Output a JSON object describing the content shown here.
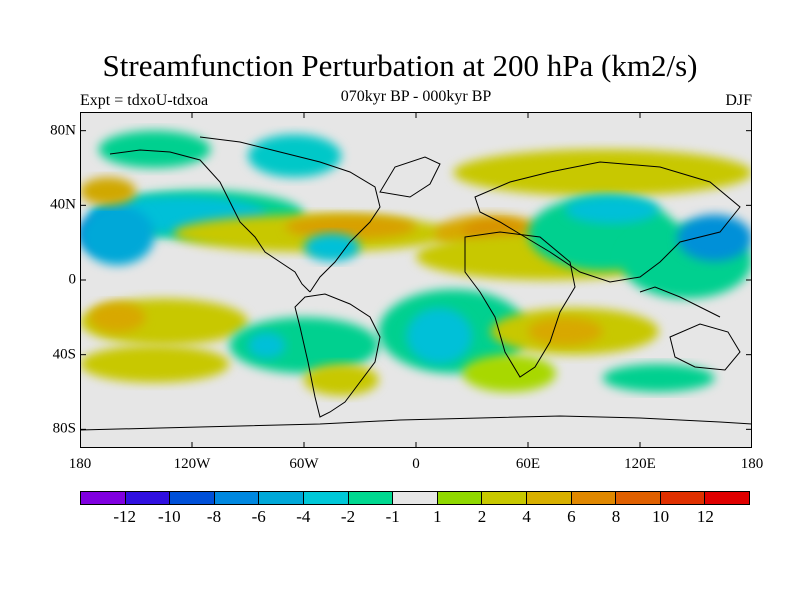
{
  "title": "Streamfunction Perturbation at 200 hPa (km2/s)",
  "subtitle_left": "Expt = tdxoU-tdxoa",
  "subtitle_center": "070kyr BP - 000kyr BP",
  "subtitle_right": "DJF",
  "map": {
    "projection": "cylindrical-equidistant",
    "lon_range": [
      -180,
      180
    ],
    "lat_range": [
      -90,
      90
    ],
    "y_ticks": [
      {
        "lat": 80,
        "label": "80N"
      },
      {
        "lat": 40,
        "label": "40N"
      },
      {
        "lat": 0,
        "label": "0"
      },
      {
        "lat": -40,
        "label": "40S"
      },
      {
        "lat": -80,
        "label": "80S"
      }
    ],
    "x_ticks": [
      {
        "lon": -180,
        "label": "180"
      },
      {
        "lon": -120,
        "label": "120W"
      },
      {
        "lon": -60,
        "label": "60W"
      },
      {
        "lon": 0,
        "label": "0"
      },
      {
        "lon": 60,
        "label": "60E"
      },
      {
        "lon": 120,
        "label": "120E"
      },
      {
        "lon": 180,
        "label": "180"
      }
    ],
    "neutral_color": "#e6e6e6",
    "fields": [
      {
        "level": -1,
        "lon": [
          -170,
          -60
        ],
        "lat": [
          22,
          48
        ],
        "color": "#00d08f"
      },
      {
        "level": -4,
        "lon": [
          -175,
          -80
        ],
        "lat": [
          25,
          45
        ],
        "color": "#00c0d8"
      },
      {
        "level": -8,
        "lon": [
          -180,
          -150
        ],
        "lat": [
          15,
          35
        ],
        "color": "#0060d0"
      },
      {
        "level": -4,
        "lon": [
          -180,
          -140
        ],
        "lat": [
          8,
          40
        ],
        "color": "#00a8d8"
      },
      {
        "level": -2,
        "lon": [
          -90,
          -40
        ],
        "lat": [
          55,
          78
        ],
        "color": "#00c8c8"
      },
      {
        "level": -1,
        "lon": [
          -170,
          -110
        ],
        "lat": [
          60,
          80
        ],
        "color": "#00d08f"
      },
      {
        "level": 4,
        "lon": [
          -180,
          -150
        ],
        "lat": [
          40,
          55
        ],
        "color": "#d0a800"
      },
      {
        "level": 2,
        "lon": [
          -130,
          20
        ],
        "lat": [
          15,
          35
        ],
        "color": "#c8c800"
      },
      {
        "level": 4,
        "lon": [
          -70,
          0
        ],
        "lat": [
          22,
          35
        ],
        "color": "#d8a000"
      },
      {
        "level": 4,
        "lon": [
          10,
          70
        ],
        "lat": [
          15,
          35
        ],
        "color": "#d8a800"
      },
      {
        "level": 6,
        "lon": [
          25,
          60
        ],
        "lat": [
          18,
          32
        ],
        "color": "#d89000"
      },
      {
        "level": 2,
        "lon": [
          0,
          140
        ],
        "lat": [
          0,
          25
        ],
        "color": "#c8c800"
      },
      {
        "level": 2,
        "lon": [
          20,
          180
        ],
        "lat": [
          45,
          70
        ],
        "color": "#c8c800"
      },
      {
        "level": -1,
        "lon": [
          60,
          140
        ],
        "lat": [
          5,
          45
        ],
        "color": "#00d08f"
      },
      {
        "level": -4,
        "lon": [
          80,
          130
        ],
        "lat": [
          30,
          45
        ],
        "color": "#00c0d8"
      },
      {
        "level": -1,
        "lon": [
          110,
          180
        ],
        "lat": [
          -10,
          30
        ],
        "color": "#00d08f"
      },
      {
        "level": -4,
        "lon": [
          140,
          180
        ],
        "lat": [
          10,
          35
        ],
        "color": "#0090d8"
      },
      {
        "level": 2,
        "lon": [
          -180,
          -90
        ],
        "lat": [
          -35,
          -10
        ],
        "color": "#c8c800"
      },
      {
        "level": 4,
        "lon": [
          -175,
          -145
        ],
        "lat": [
          -28,
          -12
        ],
        "color": "#d8a800"
      },
      {
        "level": -1,
        "lon": [
          -100,
          -20
        ],
        "lat": [
          -50,
          -20
        ],
        "color": "#00d08f"
      },
      {
        "level": -4,
        "lon": [
          -90,
          -70
        ],
        "lat": [
          -42,
          -28
        ],
        "color": "#00c0d8"
      },
      {
        "level": -1,
        "lon": [
          -20,
          60
        ],
        "lat": [
          -50,
          -5
        ],
        "color": "#00d08f"
      },
      {
        "level": -4,
        "lon": [
          -5,
          30
        ],
        "lat": [
          -45,
          -15
        ],
        "color": "#00c0d8"
      },
      {
        "level": 2,
        "lon": [
          40,
          130
        ],
        "lat": [
          -40,
          -15
        ],
        "color": "#c8c800"
      },
      {
        "level": 4,
        "lon": [
          60,
          100
        ],
        "lat": [
          -35,
          -20
        ],
        "color": "#d8a800"
      },
      {
        "level": 2,
        "lon": [
          -180,
          -100
        ],
        "lat": [
          -55,
          -35
        ],
        "color": "#c8c800"
      },
      {
        "level": 2,
        "lon": [
          -60,
          -20
        ],
        "lat": [
          -62,
          -45
        ],
        "color": "#c8c800"
      },
      {
        "level": 2,
        "lon": [
          25,
          75
        ],
        "lat": [
          -60,
          -40
        ],
        "color": "#a8d800"
      },
      {
        "level": -1,
        "lon": [
          100,
          160
        ],
        "lat": [
          -60,
          -45
        ],
        "color": "#00d08f"
      },
      {
        "level": -4,
        "lon": [
          -60,
          -30
        ],
        "lat": [
          10,
          25
        ],
        "color": "#00c0d8"
      }
    ]
  },
  "colorbar": {
    "colors": [
      "#8000e0",
      "#3010e0",
      "#0050d8",
      "#0088e0",
      "#00a8d8",
      "#00c8d8",
      "#00d890",
      "#e6e6e6",
      "#90d800",
      "#c8c800",
      "#d8b000",
      "#e08800",
      "#e06000",
      "#e03000",
      "#e00000"
    ],
    "labels": [
      "-12",
      "-10",
      "-8",
      "-6",
      "-4",
      "-2",
      "-1",
      "1",
      "2",
      "4",
      "6",
      "8",
      "10",
      "12"
    ]
  }
}
